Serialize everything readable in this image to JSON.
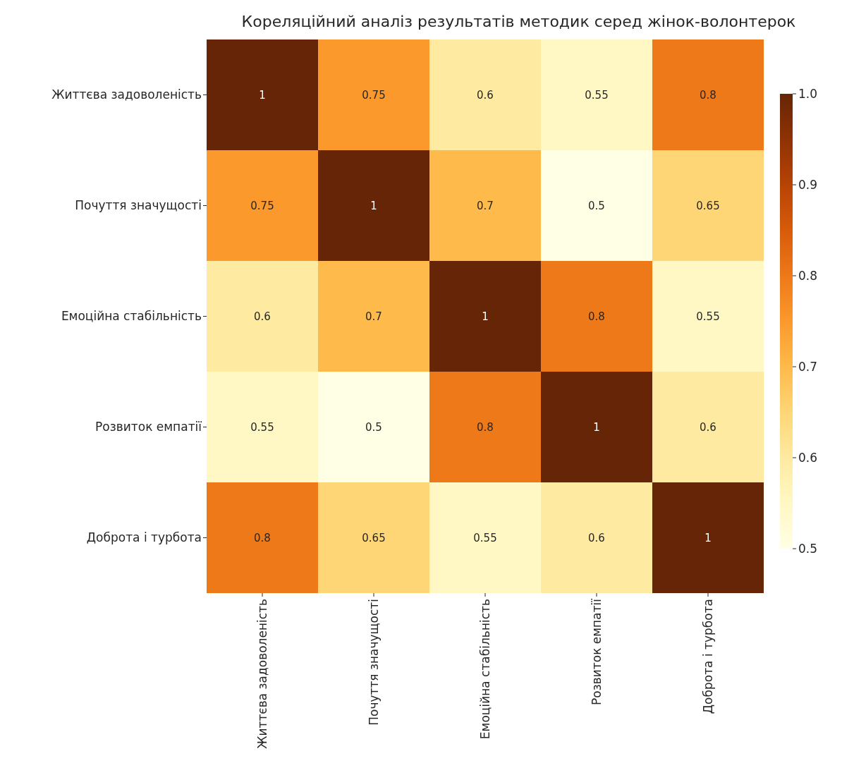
{
  "chart_data": {
    "type": "heatmap",
    "title": "Кореляційний аналіз результатів методик серед жінок-волонтерок",
    "categories": [
      "Життєва задоволеність",
      "Почуття значущості",
      "Емоційна стабільність",
      "Розвиток емпатії",
      "Доброта і турбота"
    ],
    "y_categories": [
      "Життєва задоволеність",
      "Почуття значущості",
      "Емоційна стабільність",
      "Розвиток емпатії",
      "Доброта і турбота"
    ],
    "cells": [
      [
        1,
        0.75,
        0.6,
        0.55,
        0.8
      ],
      [
        0.75,
        1,
        0.7,
        0.5,
        0.65
      ],
      [
        0.6,
        0.7,
        1,
        0.8,
        0.55
      ],
      [
        0.55,
        0.5,
        0.8,
        1,
        0.6
      ],
      [
        0.8,
        0.65,
        0.55,
        0.6,
        1
      ]
    ],
    "clim": [
      0.5,
      1.0
    ],
    "cticks": [
      0.5,
      0.6,
      0.7,
      0.8,
      0.9,
      {
        "value": 1,
        "label": "1.0"
      }
    ],
    "data_labels": true
  }
}
